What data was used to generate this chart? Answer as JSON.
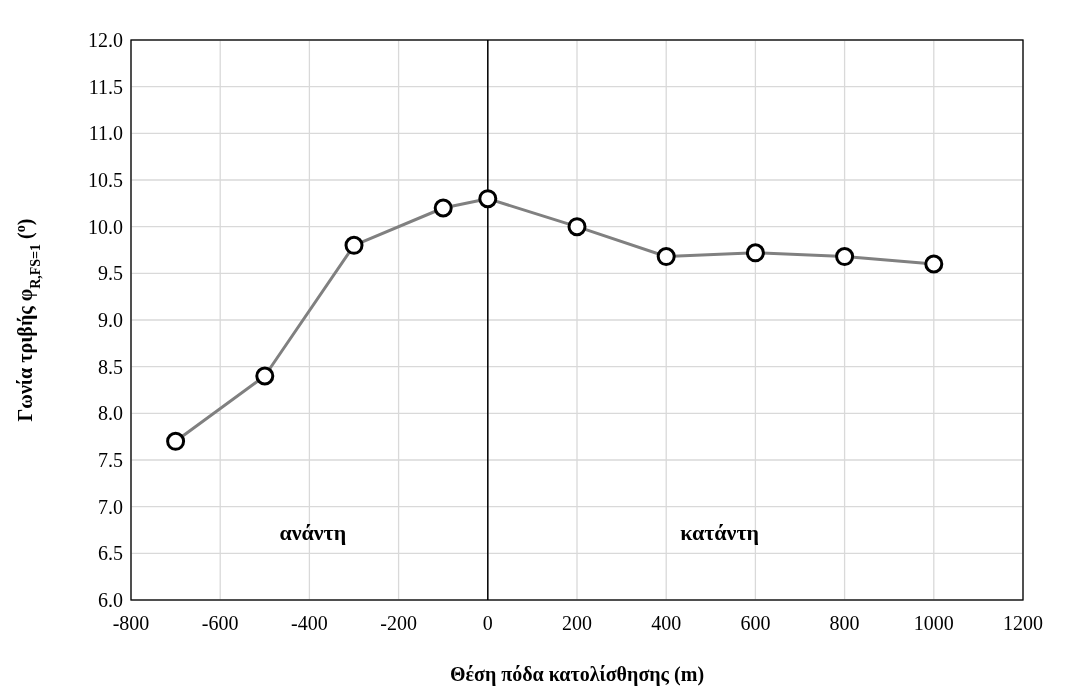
{
  "chart_data": {
    "type": "line",
    "xlabel": "Θέση πόδα κατολίσθησης (m)",
    "ylabel": "Γωνία τριβής φ$_{R,FS=1}$ ($^{o}$)",
    "x": [
      -700,
      -500,
      -300,
      -100,
      0,
      200,
      400,
      600,
      800,
      1000
    ],
    "series": [
      {
        "color": "#808080",
        "values": [
          7.7,
          8.4,
          9.8,
          10.2,
          10.3,
          10.0,
          9.68,
          9.72,
          9.68,
          9.6
        ]
      }
    ],
    "xlim": [
      -800,
      1200
    ],
    "xticks": [
      -800,
      -600,
      -400,
      -200,
      0,
      200,
      400,
      600,
      800,
      1000,
      1200
    ],
    "ylim": [
      6,
      12
    ],
    "yticks": [
      {
        "value": 6,
        "label": "6.0"
      },
      {
        "value": 6.5,
        "label": "6.5"
      },
      {
        "value": 7,
        "label": "7.0"
      },
      {
        "value": 7.5,
        "label": "7.5"
      },
      {
        "value": 8,
        "label": "8.0"
      },
      {
        "value": 8.5,
        "label": "8.5"
      },
      {
        "value": 9,
        "label": "9.0"
      },
      {
        "value": 9.5,
        "label": "9.5"
      },
      {
        "value": 10,
        "label": "10.0"
      },
      {
        "value": 10.5,
        "label": "10.5"
      },
      {
        "value": 11,
        "label": "11.0"
      },
      {
        "value": 11.5,
        "label": "11.5"
      },
      {
        "value": 12,
        "label": "12.0"
      }
    ],
    "ref_lines": [
      {
        "axis": "x",
        "value": 0,
        "color": "#000000"
      }
    ],
    "annotations": [
      "ανάντη",
      "κατάντη"
    ],
    "grid": true,
    "marker": "circle",
    "line_style": "solid"
  }
}
